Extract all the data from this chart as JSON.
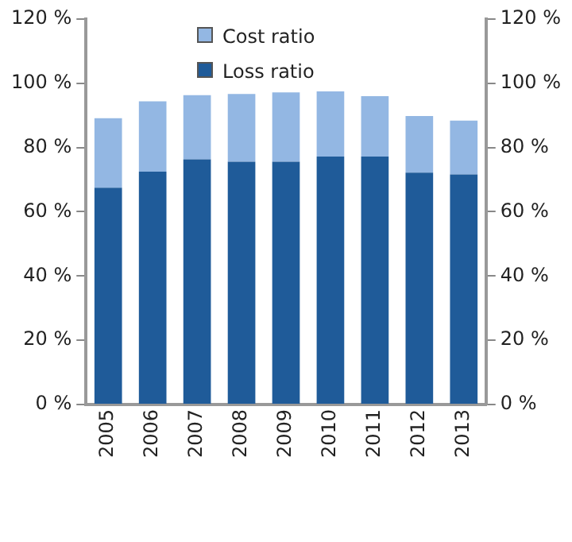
{
  "chart_data": {
    "type": "bar",
    "stacked": true,
    "categories": [
      "2005",
      "2006",
      "2007",
      "2008",
      "2009",
      "2010",
      "2011",
      "2012",
      "2013"
    ],
    "series": [
      {
        "name": "Loss ratio",
        "color": "#1f5b99",
        "values": [
          67.5,
          72.5,
          76.3,
          75.6,
          75.6,
          77.2,
          77.2,
          72.2,
          71.6
        ]
      },
      {
        "name": "Cost ratio",
        "color": "#93b7e3",
        "values": [
          21.6,
          21.9,
          20.0,
          21.1,
          21.6,
          20.3,
          18.8,
          17.6,
          16.8
        ]
      }
    ],
    "ylim": [
      0,
      120
    ],
    "yticks": [
      {
        "value": 0,
        "label": "0 %"
      },
      {
        "value": 20,
        "label": "20 %"
      },
      {
        "value": 40,
        "label": "40 %"
      },
      {
        "value": 60,
        "label": "60 %"
      },
      {
        "value": 80,
        "label": "80 %"
      },
      {
        "value": 100,
        "label": "100 %"
      },
      {
        "value": 120,
        "label": "120 %"
      }
    ],
    "y2lim": [
      0,
      120
    ],
    "y2ticks": [
      {
        "value": 0,
        "label": "0 %"
      },
      {
        "value": 20,
        "label": "20 %"
      },
      {
        "value": 40,
        "label": "40 %"
      },
      {
        "value": 60,
        "label": "60 %"
      },
      {
        "value": 80,
        "label": "80 %"
      },
      {
        "value": 100,
        "label": "100 %"
      },
      {
        "value": 120,
        "label": "120 %"
      }
    ],
    "grid": false,
    "legend": "top"
  }
}
